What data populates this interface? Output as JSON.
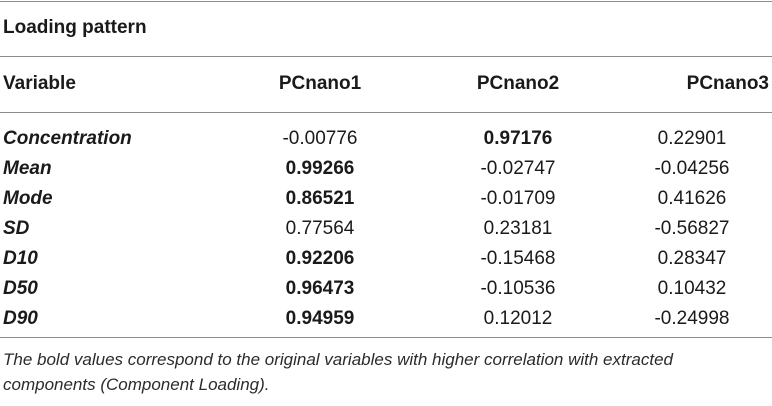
{
  "caption": "Loading pattern",
  "columns": [
    "Variable",
    "PCnano1",
    "PCnano2",
    "PCnano3"
  ],
  "rows": [
    {
      "variable": "Concentration",
      "values": [
        "-0.00776",
        "0.97176",
        "0.22901"
      ],
      "bold": [
        false,
        true,
        false
      ]
    },
    {
      "variable": "Mean",
      "values": [
        "0.99266",
        "-0.02747",
        "-0.04256"
      ],
      "bold": [
        true,
        false,
        false
      ]
    },
    {
      "variable": "Mode",
      "values": [
        "0.86521",
        "-0.01709",
        "0.41626"
      ],
      "bold": [
        true,
        false,
        false
      ]
    },
    {
      "variable": "SD",
      "values": [
        "0.77564",
        "0.23181",
        "-0.56827"
      ],
      "bold": [
        false,
        false,
        false
      ]
    },
    {
      "variable": "D10",
      "values": [
        "0.92206",
        "-0.15468",
        "0.28347"
      ],
      "bold": [
        true,
        false,
        false
      ]
    },
    {
      "variable": "D50",
      "values": [
        "0.96473",
        "-0.10536",
        "0.10432"
      ],
      "bold": [
        true,
        false,
        false
      ]
    },
    {
      "variable": "D90",
      "values": [
        "0.94959",
        "0.12012",
        "-0.24998"
      ],
      "bold": [
        true,
        false,
        false
      ]
    }
  ],
  "footnote": "The bold values correspond to the original variables with higher correlation with extracted components (Component Loading)."
}
